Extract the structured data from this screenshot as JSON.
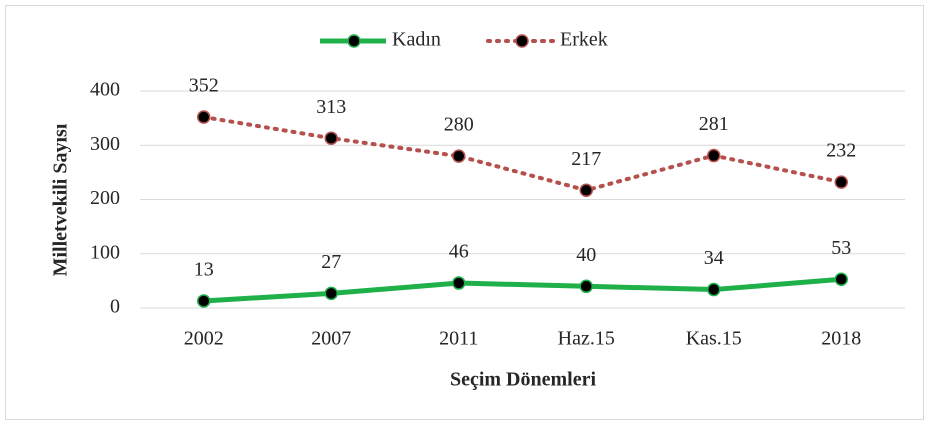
{
  "chart_data": {
    "type": "line",
    "x_label": "Seçim Dönemleri",
    "y_label": "Milletvekili Sayısı",
    "categories": [
      "2002",
      "2007",
      "2011",
      "Haz.15",
      "Kas.15",
      "2018"
    ],
    "series": [
      {
        "name": "Kadın",
        "color": "#1fb04a",
        "line_style": "solid",
        "values": [
          13,
          27,
          46,
          40,
          34,
          53
        ]
      },
      {
        "name": "Erkek",
        "color": "#b5504d",
        "line_style": "dotted",
        "values": [
          352,
          313,
          280,
          217,
          281,
          232
        ]
      }
    ],
    "ylim": [
      0,
      400
    ],
    "yticks": [
      0,
      100,
      200,
      300,
      400
    ],
    "grid": true,
    "legend": "top"
  }
}
